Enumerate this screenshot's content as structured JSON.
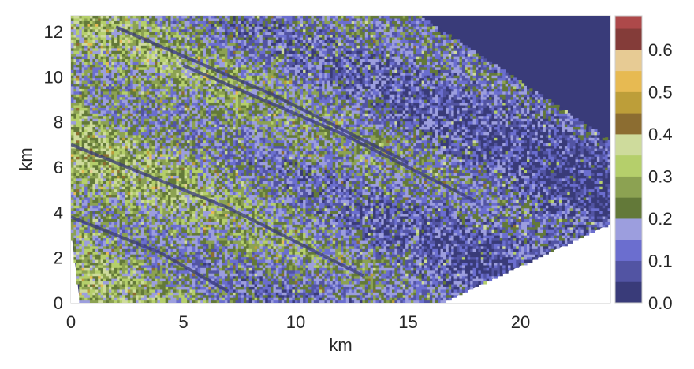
{
  "chart_data": {
    "type": "heatmap",
    "title": "",
    "xlabel": "km",
    "ylabel": "km",
    "xlim": [
      0,
      24
    ],
    "ylim": [
      0,
      12.7
    ],
    "xticks": [
      "0",
      "5",
      "10",
      "15",
      "20"
    ],
    "xtick_values": [
      0,
      5,
      10,
      15,
      20
    ],
    "yticks": [
      "0",
      "2",
      "4",
      "6",
      "8",
      "10",
      "12"
    ],
    "ytick_values": [
      0,
      2,
      4,
      6,
      8,
      10,
      12
    ],
    "grid": false,
    "colorbar": {
      "ticks": [
        "0.0",
        "0.1",
        "0.2",
        "0.3",
        "0.4",
        "0.5",
        "0.6"
      ],
      "tick_values": [
        0.0,
        0.1,
        0.2,
        0.3,
        0.4,
        0.5,
        0.6
      ],
      "range": [
        0,
        0.68
      ],
      "levels": [
        0.0,
        0.05,
        0.1,
        0.15,
        0.2,
        0.25,
        0.3,
        0.35,
        0.4,
        0.45,
        0.5,
        0.55,
        0.6,
        0.65,
        0.68
      ],
      "colors": [
        "#393b79",
        "#5254a3",
        "#6b6ecf",
        "#9c9ede",
        "#637939",
        "#8ca252",
        "#b5cf6b",
        "#cedb9c",
        "#8c6d31",
        "#bd9e39",
        "#e7ba52",
        "#e7cb94",
        "#843c39",
        "#ad494a",
        "#d6616b",
        "#e7969c",
        "#7b4173",
        "#a55194",
        "#ce6dbd",
        "#de9ed6"
      ]
    },
    "domain_polygon_km": [
      [
        0,
        3.2
      ],
      [
        0,
        12.7
      ],
      [
        15.5,
        12.7
      ],
      [
        24,
        7.2
      ],
      [
        24,
        3.5
      ],
      [
        16.5,
        0
      ],
      [
        0.4,
        0
      ]
    ],
    "ridge_lines_km": [
      [
        [
          0,
          7.0
        ],
        [
          7,
          4.2
        ],
        [
          11,
          2.2
        ],
        [
          13,
          1.2
        ]
      ],
      [
        [
          0,
          3.8
        ],
        [
          4,
          2.2
        ],
        [
          7,
          0.5
        ]
      ],
      [
        [
          5,
          10.5
        ],
        [
          12,
          7.5
        ],
        [
          18,
          4.5
        ]
      ],
      [
        [
          2,
          12.2
        ],
        [
          9,
          9.2
        ],
        [
          15,
          6.2
        ]
      ]
    ]
  }
}
